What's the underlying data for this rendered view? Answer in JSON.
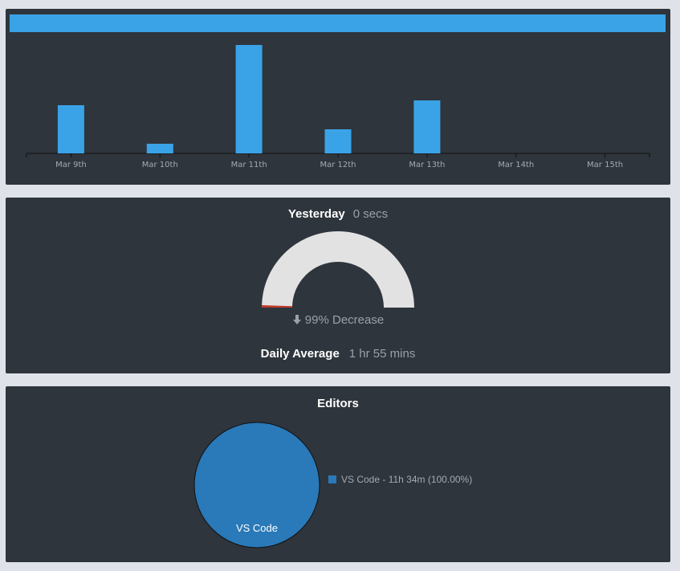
{
  "activity": {
    "chart_data": {
      "type": "bar",
      "categories": [
        "Mar 9th",
        "Mar 10th",
        "Mar 11th",
        "Mar 12th",
        "Mar 13th",
        "Mar 14th",
        "Mar 15th"
      ],
      "values": [
        2.0,
        0.4,
        4.5,
        1.0,
        2.2,
        0,
        0
      ],
      "title": "",
      "xlabel": "",
      "ylabel": "",
      "grid": false,
      "color": "#3aa3e7"
    }
  },
  "yesterday": {
    "title": "Yesterday",
    "value": "0 secs",
    "change": "99% Decrease",
    "change_fraction": 0.01,
    "gauge_track_color": "#e2e2e2",
    "gauge_value_color": "#c0392b",
    "avg_title": "Daily Average",
    "avg_value": "1 hr 55 mins"
  },
  "editors": {
    "title": "Editors",
    "chart_data": {
      "type": "pie",
      "slices": [
        {
          "label": "VS Code",
          "value": 100.0,
          "legend": "VS Code - 11h 34m (100.00%)",
          "color": "#2a79b8"
        }
      ]
    }
  }
}
